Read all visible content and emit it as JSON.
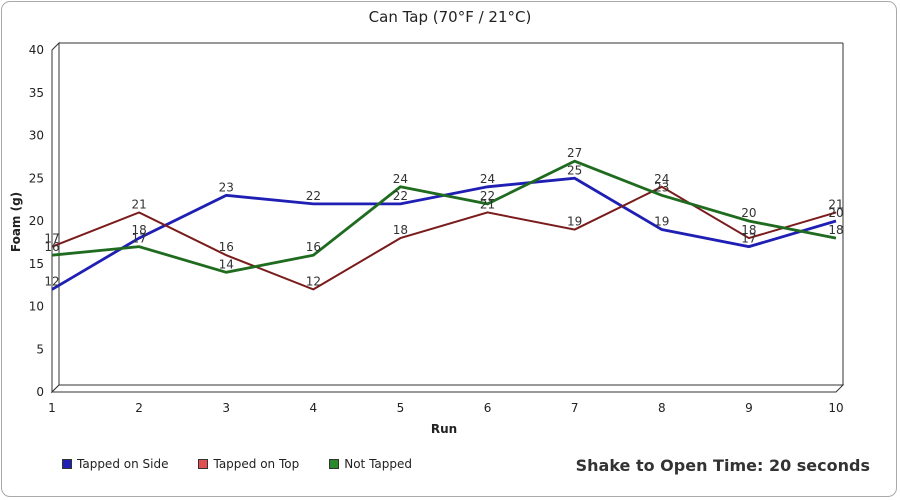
{
  "chart_data": {
    "type": "line",
    "title": "Can Tap (70°F / 21°C)",
    "xlabel": "Run",
    "ylabel": "Foam (g)",
    "x": [
      1,
      2,
      3,
      4,
      5,
      6,
      7,
      8,
      9,
      10
    ],
    "ylim": [
      0,
      40
    ],
    "yticks": [
      0,
      5,
      10,
      15,
      20,
      25,
      30,
      35,
      40
    ],
    "grid": false,
    "legend_position": "bottom-left",
    "series": [
      {
        "name": "Tapped on Side",
        "color": "#1f1fb4",
        "line_color": "#1f1fb4",
        "values": [
          12,
          18,
          23,
          22,
          22,
          24,
          25,
          19,
          17,
          20
        ]
      },
      {
        "name": "Tapped on Top",
        "color": "#e05050",
        "line_color": "#7a1c1c",
        "values": [
          17,
          21,
          16,
          12,
          18,
          21,
          19,
          24,
          18,
          21
        ]
      },
      {
        "name": "Not Tapped",
        "color": "#2a8a2a",
        "line_color": "#1f6b1f",
        "values": [
          16,
          17,
          14,
          16,
          24,
          22,
          27,
          23,
          20,
          18
        ]
      }
    ],
    "footnote": "Shake to Open Time: 20 seconds"
  }
}
